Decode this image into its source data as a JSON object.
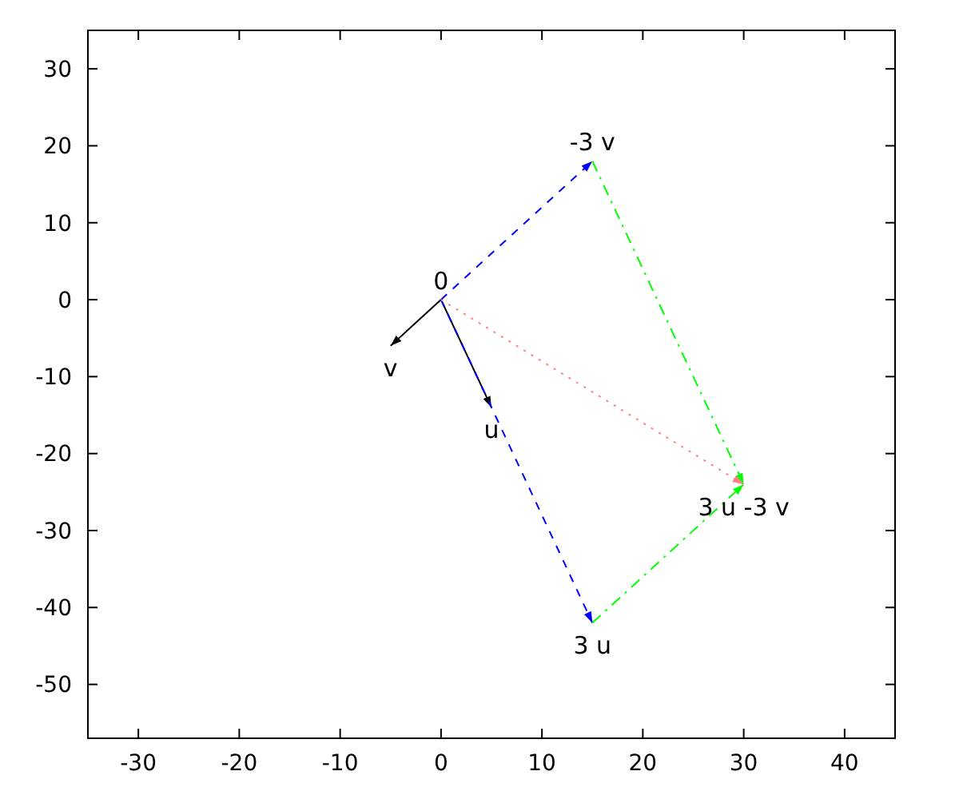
{
  "chart_data": {
    "type": "line",
    "xlim": [
      -35,
      45
    ],
    "ylim": [
      -57,
      35
    ],
    "xticks": [
      -30,
      -20,
      -10,
      0,
      10,
      20,
      30,
      40
    ],
    "yticks": [
      -50,
      -40,
      -30,
      -20,
      -10,
      0,
      10,
      20,
      30
    ],
    "grid": false,
    "series": [
      {
        "x": [
          0,
          5
        ],
        "values": [
          0,
          -14
        ],
        "color": "#000000",
        "line_style": "solid"
      },
      {
        "x": [
          0,
          -5
        ],
        "values": [
          0,
          -6
        ],
        "color": "#000000",
        "line_style": "solid"
      },
      {
        "x": [
          0,
          15
        ],
        "values": [
          0,
          18
        ],
        "color": "#0000ff",
        "line_style": "dashed"
      },
      {
        "x": [
          0,
          15
        ],
        "values": [
          0,
          -42
        ],
        "color": "#0000ff",
        "line_style": "dashed"
      },
      {
        "x": [
          15,
          30
        ],
        "values": [
          18,
          -24
        ],
        "color": "#00ff00",
        "line_style": "dashdot"
      },
      {
        "x": [
          15,
          30
        ],
        "values": [
          -42,
          -24
        ],
        "color": "#00ff00",
        "line_style": "dashdot"
      },
      {
        "x": [
          0,
          30
        ],
        "values": [
          0,
          -24
        ],
        "color": "#ff8080",
        "line_style": "dotted"
      }
    ],
    "annotations": [
      {
        "text": "0",
        "x": 0,
        "y": 0
      },
      {
        "text": "v",
        "x": -5,
        "y": -6
      },
      {
        "text": "u",
        "x": 5,
        "y": -14
      },
      {
        "text": "-3 v",
        "x": 15,
        "y": 18
      },
      {
        "text": "3 u",
        "x": 15,
        "y": -42
      },
      {
        "text": "3 u -3 v",
        "x": 30,
        "y": -24
      }
    ]
  }
}
